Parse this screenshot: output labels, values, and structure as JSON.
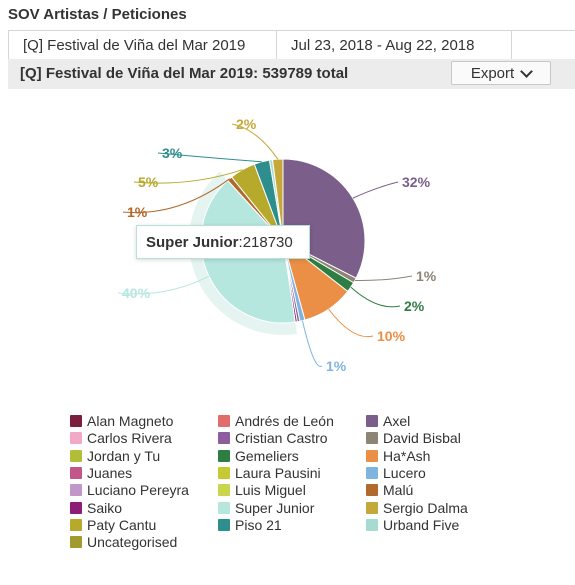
{
  "header": {
    "title": "SOV Artistas / Peticiones",
    "tabs": [
      "[Q] Festival de Viña del Mar 2019",
      "Jul 23, 2018 - Aug 22, 2018"
    ],
    "subtitle": "[Q] Festival de Viña del Mar 2019: 539789 total",
    "export_label": "Export"
  },
  "tooltip": {
    "name": "Super Junior",
    "value": "218730"
  },
  "chart_data": {
    "type": "pie",
    "total": 539789,
    "slices": [
      {
        "name": "Axel",
        "percent": 32,
        "label": "32%",
        "color": "#7b5e8a"
      },
      {
        "name": "David Bisbal",
        "percent": 1,
        "label": "1%",
        "color": "#8c8474"
      },
      {
        "name": "Gemeliers",
        "percent": 2,
        "label": "2%",
        "color": "#2e7d43"
      },
      {
        "name": "Ha*Ash",
        "percent": 10,
        "label": "10%",
        "color": "#ea8f45"
      },
      {
        "name": "Lucero",
        "percent": 1,
        "label": "1%",
        "color": "#7fb4e0"
      },
      {
        "name": "Cristian Castro",
        "percent": 0.5,
        "label": "",
        "color": "#8e5e9c"
      },
      {
        "name": "Saiko",
        "percent": 0.4,
        "label": "",
        "color": "#8d1e76"
      },
      {
        "name": "Super Junior",
        "percent": 40,
        "label": "40%",
        "color": "#b6e7df"
      },
      {
        "name": "Malú",
        "percent": 1,
        "label": "1%",
        "color": "#b1692c"
      },
      {
        "name": "Paty Cantu",
        "percent": 5,
        "label": "5%",
        "color": "#b7a92c"
      },
      {
        "name": "Piso 21",
        "percent": 3,
        "label": "3%",
        "color": "#2e8e8e"
      },
      {
        "name": "Urband Five",
        "percent": 0.6,
        "label": "",
        "color": "#a6dccf"
      },
      {
        "name": "Sergio Dalma",
        "percent": 2,
        "label": "2%",
        "color": "#c6a83a"
      }
    ],
    "legend": [
      {
        "name": "Alan Magneto",
        "color": "#7a1f3d"
      },
      {
        "name": "Andrés de León",
        "color": "#e16d6d"
      },
      {
        "name": "Axel",
        "color": "#7b5e8a"
      },
      {
        "name": "Carlos Rivera",
        "color": "#f1a9c8"
      },
      {
        "name": "Cristian Castro",
        "color": "#8e5e9c"
      },
      {
        "name": "David Bisbal",
        "color": "#8c8474"
      },
      {
        "name": "Jordan y Tu",
        "color": "#b3be38"
      },
      {
        "name": "Gemeliers",
        "color": "#2e7d43"
      },
      {
        "name": "Ha*Ash",
        "color": "#ea8f45"
      },
      {
        "name": "Juanes",
        "color": "#c2568a"
      },
      {
        "name": "Laura Pausini",
        "color": "#c5c933"
      },
      {
        "name": "Lucero",
        "color": "#7fb4e0"
      },
      {
        "name": "Luciano Pereyra",
        "color": "#c197c9"
      },
      {
        "name": "Luis Miguel",
        "color": "#c8d64c"
      },
      {
        "name": "Malú",
        "color": "#b1692c"
      },
      {
        "name": "Saiko",
        "color": "#8d1e76"
      },
      {
        "name": "Super Junior",
        "color": "#b6e7df"
      },
      {
        "name": "Sergio Dalma",
        "color": "#c6a83a"
      },
      {
        "name": "Paty Cantu",
        "color": "#b7a92c"
      },
      {
        "name": "Piso 21",
        "color": "#2e8e8e"
      },
      {
        "name": "Urband Five",
        "color": "#a6dccf"
      },
      {
        "name": "Uncategorised",
        "color": "#a29a2c"
      }
    ]
  }
}
